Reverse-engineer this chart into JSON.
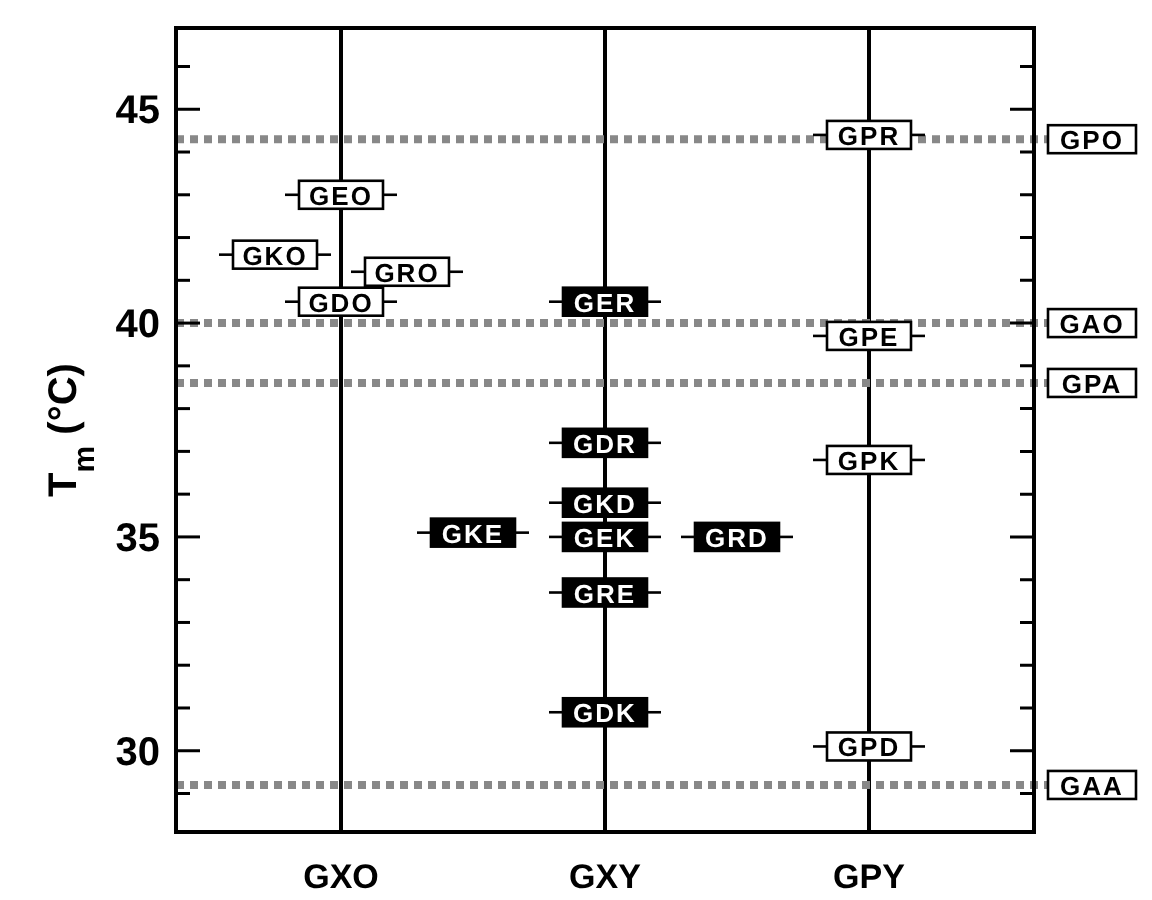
{
  "chart_data": {
    "type": "scatter",
    "ylabel": "T$_{m}$ (°C)",
    "marker": "square",
    "grid": "x",
    "categories": [
      null,
      null,
      "GXO",
      null,
      null,
      null,
      "GXY",
      null,
      null,
      null,
      "GPY",
      null,
      null
    ],
    "ylim": [
      28.1,
      46.9
    ],
    "yticks": [
      {
        "value": 29,
        "label": null
      },
      30,
      {
        "value": 31,
        "label": null
      },
      {
        "value": 32,
        "label": null
      },
      {
        "value": 33,
        "label": null
      },
      {
        "value": 34,
        "label": null
      },
      35,
      {
        "value": 36,
        "label": null
      },
      {
        "value": 37,
        "label": null
      },
      {
        "value": 38,
        "label": null
      },
      {
        "value": 39,
        "label": null
      },
      40,
      {
        "value": 41,
        "label": null
      },
      {
        "value": 42,
        "label": null
      },
      {
        "value": 43,
        "label": null
      },
      {
        "value": 44,
        "label": null
      },
      45,
      {
        "value": 46,
        "label": null
      }
    ],
    "series": [
      {
        "color": "#ffffff",
        "values": [
          null,
          null,
          43.0,
          null,
          null,
          null,
          null,
          null,
          null,
          null,
          null,
          null,
          null
        ],
        "value_labels": [
          null,
          null,
          "GEO",
          null,
          null,
          null,
          null,
          null,
          null,
          null,
          null,
          null,
          null
        ]
      },
      {
        "color": "#ffffff",
        "values": [
          null,
          41.6,
          null,
          null,
          null,
          null,
          null,
          null,
          null,
          null,
          null,
          null,
          null
        ],
        "value_labels": [
          null,
          "GKO",
          null,
          null,
          null,
          null,
          null,
          null,
          null,
          null,
          null,
          null,
          null
        ]
      },
      {
        "color": "#ffffff",
        "values": [
          null,
          null,
          null,
          41.2,
          null,
          null,
          null,
          null,
          null,
          null,
          null,
          null,
          null
        ],
        "value_labels": [
          null,
          null,
          null,
          "GRO",
          null,
          null,
          null,
          null,
          null,
          null,
          null,
          null,
          null
        ]
      },
      {
        "color": "#ffffff",
        "values": [
          null,
          null,
          40.5,
          null,
          null,
          null,
          null,
          null,
          null,
          null,
          null,
          null,
          null
        ],
        "value_labels": [
          null,
          null,
          "GDO",
          null,
          null,
          null,
          null,
          null,
          null,
          null,
          null,
          null,
          null
        ]
      },
      {
        "color": "#000000",
        "values": [
          null,
          null,
          null,
          null,
          null,
          null,
          40.5,
          null,
          null,
          null,
          null,
          null,
          null
        ],
        "value_labels": [
          null,
          null,
          null,
          null,
          null,
          null,
          "GER",
          null,
          null,
          null,
          null,
          null,
          null
        ]
      },
      {
        "color": "#000000",
        "values": [
          null,
          null,
          null,
          null,
          null,
          null,
          37.2,
          null,
          null,
          null,
          null,
          null,
          null
        ],
        "value_labels": [
          null,
          null,
          null,
          null,
          null,
          null,
          "GDR",
          null,
          null,
          null,
          null,
          null,
          null
        ]
      },
      {
        "color": "#000000",
        "values": [
          null,
          null,
          null,
          null,
          null,
          null,
          35.8,
          null,
          null,
          null,
          null,
          null,
          null
        ],
        "value_labels": [
          null,
          null,
          null,
          null,
          null,
          null,
          "GKD",
          null,
          null,
          null,
          null,
          null,
          null
        ]
      },
      {
        "color": "#000000",
        "values": [
          null,
          null,
          null,
          null,
          35.1,
          null,
          null,
          null,
          null,
          null,
          null,
          null,
          null
        ],
        "value_labels": [
          null,
          null,
          null,
          null,
          "GKE",
          null,
          null,
          null,
          null,
          null,
          null,
          null,
          null
        ]
      },
      {
        "color": "#000000",
        "values": [
          null,
          null,
          null,
          null,
          null,
          null,
          35.0,
          null,
          null,
          null,
          null,
          null,
          null
        ],
        "value_labels": [
          null,
          null,
          null,
          null,
          null,
          null,
          "GEK",
          null,
          null,
          null,
          null,
          null,
          null
        ]
      },
      {
        "color": "#000000",
        "values": [
          null,
          null,
          null,
          null,
          null,
          null,
          null,
          null,
          35.0,
          null,
          null,
          null,
          null
        ],
        "value_labels": [
          null,
          null,
          null,
          null,
          null,
          null,
          null,
          null,
          "GRD",
          null,
          null,
          null,
          null
        ]
      },
      {
        "color": "#000000",
        "values": [
          null,
          null,
          null,
          null,
          null,
          null,
          33.7,
          null,
          null,
          null,
          null,
          null,
          null
        ],
        "value_labels": [
          null,
          null,
          null,
          null,
          null,
          null,
          "GRE",
          null,
          null,
          null,
          null,
          null,
          null
        ]
      },
      {
        "color": "#000000",
        "values": [
          null,
          null,
          null,
          null,
          null,
          null,
          30.9,
          null,
          null,
          null,
          null,
          null,
          null
        ],
        "value_labels": [
          null,
          null,
          null,
          null,
          null,
          null,
          "GDK",
          null,
          null,
          null,
          null,
          null,
          null
        ]
      },
      {
        "color": "#ffffff",
        "values": [
          null,
          null,
          null,
          null,
          null,
          null,
          null,
          null,
          null,
          null,
          44.4,
          null,
          null
        ],
        "value_labels": [
          null,
          null,
          null,
          null,
          null,
          null,
          null,
          null,
          null,
          null,
          "GPR",
          null,
          null
        ]
      },
      {
        "color": "#ffffff",
        "values": [
          null,
          null,
          null,
          null,
          null,
          null,
          null,
          null,
          null,
          null,
          39.7,
          null,
          null
        ],
        "value_labels": [
          null,
          null,
          null,
          null,
          null,
          null,
          null,
          null,
          null,
          null,
          "GPE",
          null,
          null
        ]
      },
      {
        "color": "#ffffff",
        "values": [
          null,
          null,
          null,
          null,
          null,
          null,
          null,
          null,
          null,
          null,
          36.8,
          null,
          null
        ],
        "value_labels": [
          null,
          null,
          null,
          null,
          null,
          null,
          null,
          null,
          null,
          null,
          "GPK",
          null,
          null
        ]
      },
      {
        "color": "#ffffff",
        "values": [
          null,
          null,
          null,
          null,
          null,
          null,
          null,
          null,
          null,
          null,
          30.1,
          null,
          null
        ],
        "value_labels": [
          null,
          null,
          null,
          null,
          null,
          null,
          null,
          null,
          null,
          null,
          "GPD",
          null,
          null
        ]
      }
    ],
    "ref_lines": [
      {
        "axis": "y",
        "value": 44.3,
        "label": "GPO",
        "color": "#888888",
        "line_style": "dotted"
      },
      {
        "axis": "y",
        "value": 40.0,
        "label": "GAO",
        "color": "#888888",
        "line_style": "dotted"
      },
      {
        "axis": "y",
        "value": 38.6,
        "label": "GPA",
        "color": "#888888",
        "line_style": "dotted"
      },
      {
        "axis": "y",
        "value": 29.2,
        "label": "GAA",
        "color": "#888888",
        "line_style": "dotted"
      }
    ]
  }
}
